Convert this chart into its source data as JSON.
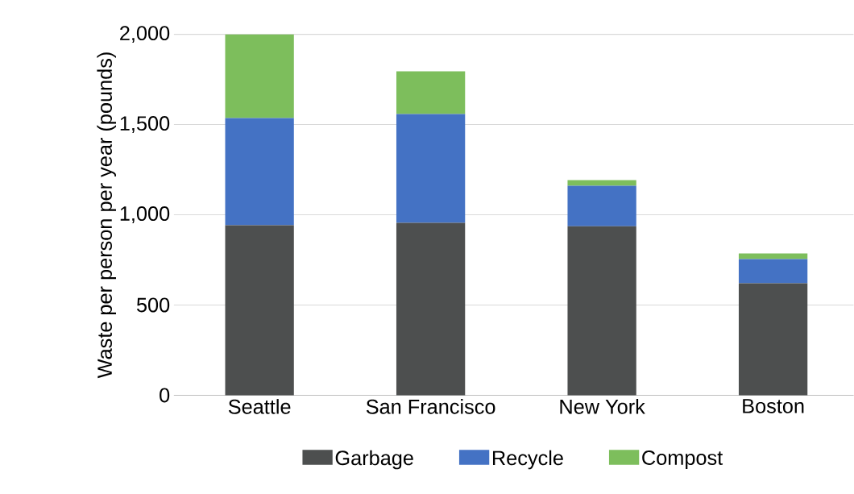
{
  "chart_data": {
    "type": "bar",
    "stacked": true,
    "ylabel": "Waste per person per year (pounds)",
    "categories": [
      "Seattle",
      "San Francisco",
      "New York",
      "Boston"
    ],
    "series": [
      {
        "name": "Garbage",
        "color": "#4d4f4f",
        "values": [
          942,
          955,
          937,
          620
        ]
      },
      {
        "name": "Recycle",
        "color": "#4472c4",
        "values": [
          594,
          603,
          224,
          134
        ]
      },
      {
        "name": "Compost",
        "color": "#7dbe5c",
        "values": [
          464,
          237,
          31,
          32
        ]
      }
    ],
    "ylim": [
      0,
      2000
    ],
    "yticks": [
      0,
      500,
      {
        "value": 1000,
        "label": "1,000"
      },
      {
        "value": 1500,
        "label": "1,500"
      },
      {
        "value": 2000,
        "label": "2,000"
      }
    ],
    "grid": "y",
    "legend": "bottom"
  }
}
